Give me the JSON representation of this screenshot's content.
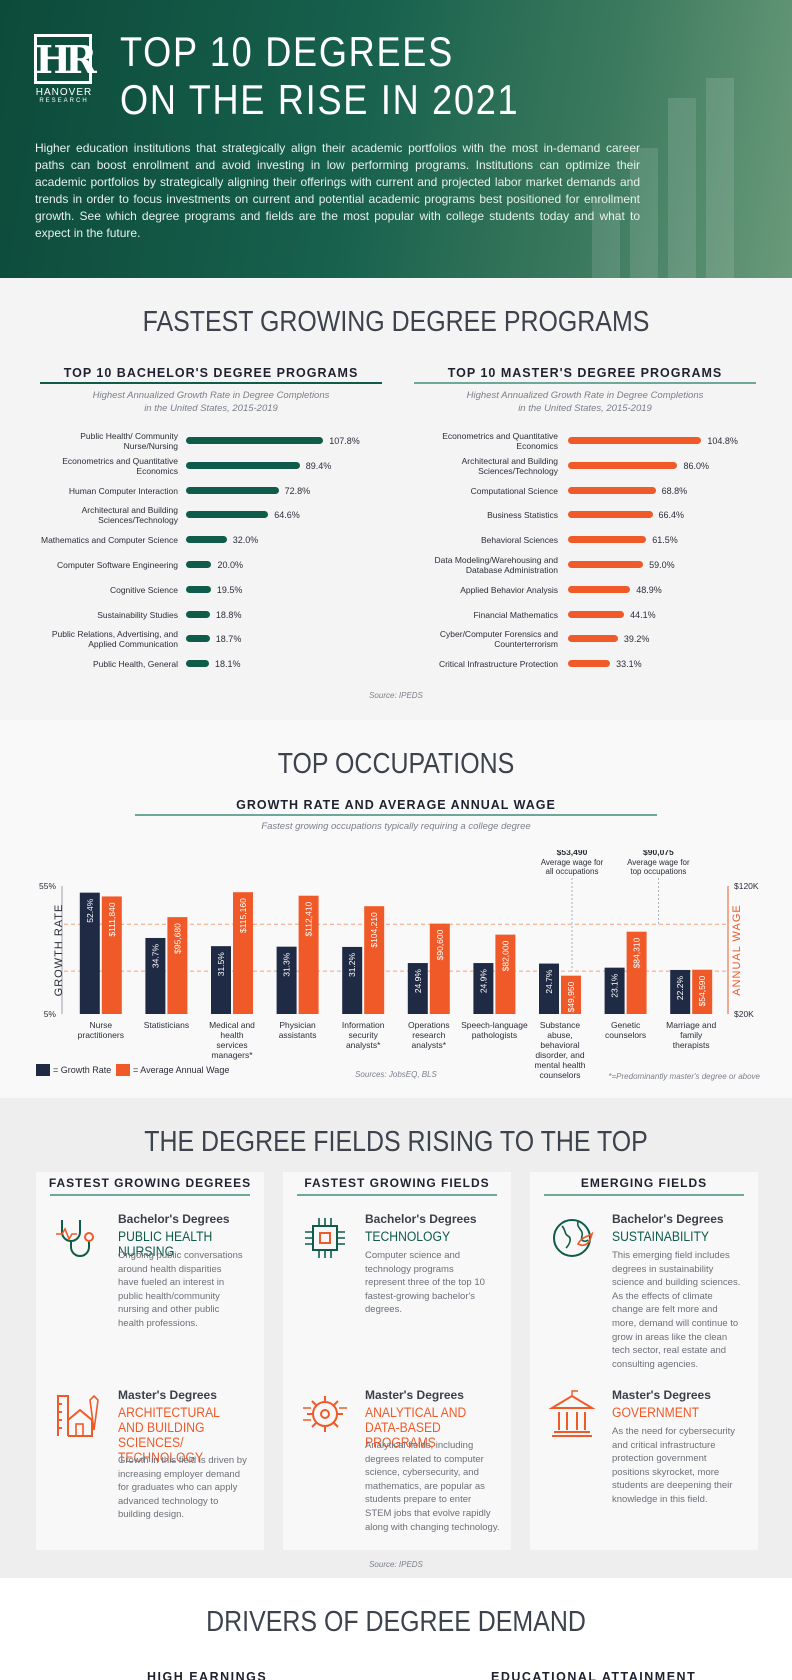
{
  "header": {
    "logo_initials": "HR",
    "logo_name": "HANOVER",
    "logo_sub": "RESEARCH",
    "title_line1": "TOP 10 DEGREES",
    "title_line2": "ON THE RISE IN 2021",
    "intro": "Higher education institutions that strategically align their academic portfolios with the most in-demand career paths can boost enrollment and avoid investing in low performing programs. Institutions can optimize their academic portfolios by strategically aligning their offerings with current and projected labor market demands and trends in order to focus investments on current and potential academic programs best positioned for enrollment growth. See which degree programs and fields are the most popular with college students today and what to expect in the future."
  },
  "section1": {
    "title": "FASTEST GROWING DEGREE PROGRAMS",
    "source": "Source: IPEDS"
  },
  "section2": {
    "title": "TOP OCCUPATIONS",
    "subtitle": "GROWTH RATE AND AVERAGE ANNUAL WAGE",
    "note": "Fastest growing occupations typically requiring a college degree",
    "source": "Sources: JobsEQ, BLS",
    "footnote": "*=Predominantly master's degree or above",
    "legend_growth": "= Growth Rate",
    "legend_wage": "= Average Annual Wage",
    "ref_all_value": "$53,490",
    "ref_all_label1": "Average wage for",
    "ref_all_label2": "all occupations",
    "ref_top_value": "$90,075",
    "ref_top_label1": "Average wage for",
    "ref_top_label2": "top occupations"
  },
  "section3": {
    "title": "THE DEGREE FIELDS RISING TO THE TOP",
    "source": "Source: IPEDS",
    "columns": [
      {
        "title": "FASTEST GROWING DEGREES",
        "items": [
          {
            "degree": "Bachelor's Degrees",
            "field": "PUBLIC HEALTH NURSING",
            "desc": "Ongoing public conversations around health disparities have fueled an interest in public health/community nursing and other public health professions."
          },
          {
            "degree": "Master's Degrees",
            "field": "ARCHITECTURAL AND BUILDING SCIENCES/ TECHNOLOGY",
            "desc": "Growth in this field is driven by increasing employer demand for graduates who can apply advanced technology to building design."
          }
        ]
      },
      {
        "title": "FASTEST GROWING FIELDS",
        "items": [
          {
            "degree": "Bachelor's Degrees",
            "field": "TECHNOLOGY",
            "desc": "Computer science and technology programs represent three of the top 10 fastest-growing bachelor's degrees."
          },
          {
            "degree": "Master's Degrees",
            "field": "ANALYTICAL AND DATA-BASED PROGRAMS",
            "desc": "Analytical fields, including degrees related to computer science, cybersecurity, and mathematics, are popular as students prepare to enter STEM jobs that evolve rapidly along with changing technology."
          }
        ]
      },
      {
        "title": "EMERGING FIELDS",
        "items": [
          {
            "degree": "Bachelor's Degrees",
            "field": "SUSTAINABILITY",
            "desc": "This emerging field includes degrees in sustainability science and building sciences. As the effects of climate change are felt more and more, demand will continue to grow in areas like the clean tech sector, real estate and consulting agencies."
          },
          {
            "degree": "Master's Degrees",
            "field": "GOVERNMENT",
            "desc": "As the need for cybersecurity and critical infrastructure protection government positions skyrocket, more students are deepening their knowledge in this field."
          }
        ]
      }
    ]
  },
  "section4": {
    "title": "DRIVERS OF DEGREE DEMAND",
    "sub_left": "HIGH EARNINGS",
    "sub_right": "EDUCATIONAL ATTAINMENT"
  },
  "colors": {
    "green": "#0e5c49",
    "orange": "#f05a28",
    "navy": "#1f2a44",
    "teal_line": "#6fa89b"
  },
  "chart_data": [
    {
      "type": "bar",
      "orientation": "horizontal",
      "title": "TOP 10 BACHELOR'S DEGREE PROGRAMS",
      "subtitle": "Highest Annualized Growth Rate in Degree Completions in the United States, 2015-2019",
      "categories": [
        "Public Health/ Community Nurse/Nursing",
        "Econometrics and Quantitative Economics",
        "Human Computer Interaction",
        "Architectural and Building Sciences/Technology",
        "Mathematics and Computer Science",
        "Computer Software Engineering",
        "Cognitive Science",
        "Sustainability Studies",
        "Public Relations, Advertising, and Applied Communication",
        "Public Health, General"
      ],
      "values": [
        107.8,
        89.4,
        72.8,
        64.6,
        32.0,
        20.0,
        19.5,
        18.8,
        18.7,
        18.1
      ],
      "value_labels": [
        "107.8%",
        "89.4%",
        "72.8%",
        "64.6%",
        "32.0%",
        "20.0%",
        "19.5%",
        "18.8%",
        "18.7%",
        "18.1%"
      ],
      "color": "#0e5c49"
    },
    {
      "type": "bar",
      "orientation": "horizontal",
      "title": "TOP 10 MASTER'S DEGREE PROGRAMS",
      "subtitle": "Highest Annualized Growth Rate in Degree Completions in the United States, 2015-2019",
      "categories": [
        "Econometrics and Quantitative Economics",
        "Architectural and Building Sciences/Technology",
        "Computational Science",
        "Business Statistics",
        "Behavioral Sciences",
        "Data Modeling/Warehousing and Database Administration",
        "Applied Behavior Analysis",
        "Financial Mathematics",
        "Cyber/Computer Forensics and Counterterrorism",
        "Critical Infrastructure Protection"
      ],
      "values": [
        104.8,
        86.0,
        68.8,
        66.4,
        61.5,
        59.0,
        48.9,
        44.1,
        39.2,
        33.1
      ],
      "value_labels": [
        "104.8%",
        "86.0%",
        "68.8%",
        "66.4%",
        "61.5%",
        "59.0%",
        "48.9%",
        "44.1%",
        "39.2%",
        "33.1%"
      ],
      "color": "#f05a28"
    },
    {
      "type": "bar",
      "title": "GROWTH RATE AND AVERAGE ANNUAL WAGE",
      "ylabel": "GROWTH RATE",
      "ylabel_right": "ANNUAL WAGE",
      "ylim": [
        5,
        55
      ],
      "ylim_right": [
        20000,
        120000
      ],
      "y_ticks": [
        "55%",
        "5%"
      ],
      "y_ticks_right": [
        "$120K",
        "$20K"
      ],
      "categories": [
        "Nurse practitioners",
        "Statisticians",
        "Medical and health services managers*",
        "Physician assistants",
        "Information security analysts*",
        "Operations research analysts*",
        "Speech-language pathologists",
        "Substance abuse, behavioral disorder, and mental health counselors",
        "Genetic counselors",
        "Marriage and family therapists"
      ],
      "series": [
        {
          "name": "Growth Rate",
          "values": [
            52.4,
            34.7,
            31.5,
            31.3,
            31.2,
            24.9,
            24.9,
            24.7,
            23.1,
            22.2
          ],
          "labels": [
            "52.4%",
            "34.7%",
            "31.5%",
            "31.3%",
            "31.2%",
            "24.9%",
            "24.9%",
            "24.7%",
            "23.1%",
            "22.2%"
          ],
          "color": "#1f2a44"
        },
        {
          "name": "Average Annual Wage",
          "values": [
            111840,
            95680,
            115160,
            112410,
            104210,
            90600,
            82000,
            49950,
            84310,
            54590
          ],
          "labels": [
            "$111,840",
            "$95,680",
            "$115,160",
            "$112,410",
            "$104,210",
            "$90,600",
            "$82,000",
            "$49,950",
            "$84,310",
            "$54,590"
          ],
          "color": "#f05a28"
        }
      ],
      "reference_lines": [
        {
          "value": 90075,
          "label": "Average wage for top occupations"
        },
        {
          "value": 53490,
          "label": "Average wage for all occupations"
        }
      ]
    }
  ]
}
